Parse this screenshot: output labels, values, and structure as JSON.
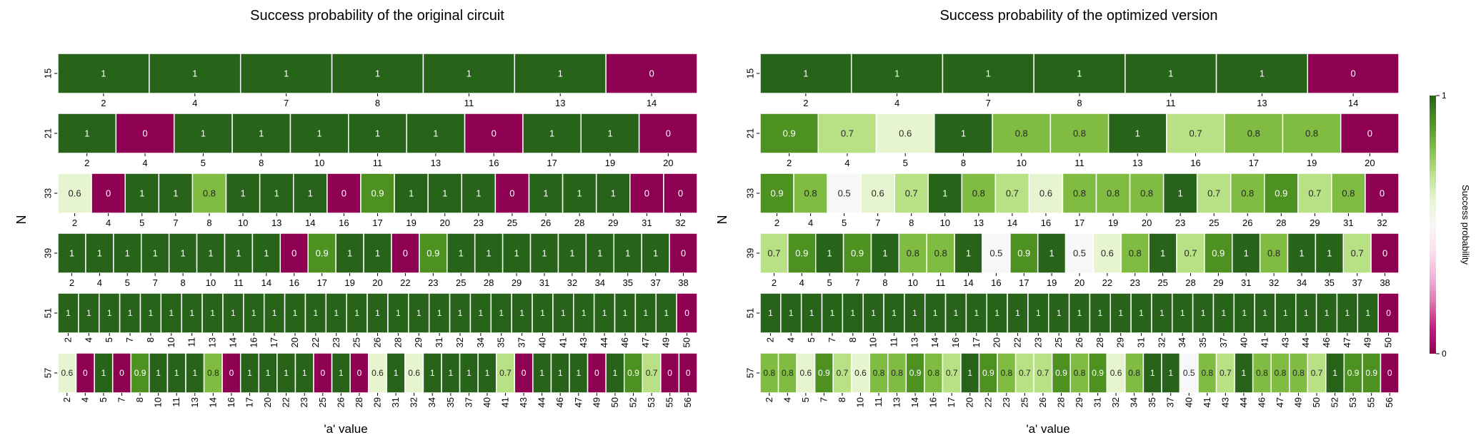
{
  "chart_data": [
    {
      "type": "heatmap",
      "title": "Success probability of the original circuit",
      "xlabel": "'a' value",
      "ylabel": "N",
      "rows": [
        {
          "N": "15",
          "a": [
            "2",
            "4",
            "7",
            "8",
            "11",
            "13",
            "14"
          ],
          "values": [
            1,
            1,
            1,
            1,
            1,
            1,
            0
          ]
        },
        {
          "N": "21",
          "a": [
            "2",
            "4",
            "5",
            "8",
            "10",
            "11",
            "13",
            "16",
            "17",
            "19",
            "20"
          ],
          "values": [
            1,
            0,
            1,
            1,
            1,
            1,
            1,
            0,
            1,
            1,
            0
          ]
        },
        {
          "N": "33",
          "a": [
            "2",
            "4",
            "5",
            "7",
            "8",
            "10",
            "13",
            "14",
            "16",
            "17",
            "19",
            "20",
            "23",
            "25",
            "26",
            "28",
            "29",
            "31",
            "32"
          ],
          "values": [
            0.6,
            0,
            1,
            1,
            0.8,
            1,
            1,
            1,
            0,
            0.9,
            1,
            1,
            1,
            0,
            1,
            1,
            1,
            0,
            0
          ]
        },
        {
          "N": "39",
          "a": [
            "2",
            "4",
            "5",
            "7",
            "8",
            "10",
            "11",
            "14",
            "16",
            "17",
            "19",
            "20",
            "22",
            "23",
            "25",
            "28",
            "29",
            "31",
            "32",
            "34",
            "35",
            "37",
            "38"
          ],
          "values": [
            1,
            1,
            1,
            1,
            1,
            1,
            1,
            1,
            0,
            0.9,
            1,
            1,
            0,
            0.9,
            1,
            1,
            1,
            1,
            1,
            1,
            1,
            1,
            0
          ]
        },
        {
          "N": "51",
          "a": [
            "2",
            "4",
            "5",
            "7",
            "8",
            "10",
            "11",
            "13",
            "14",
            "16",
            "17",
            "20",
            "22",
            "23",
            "25",
            "26",
            "28",
            "29",
            "31",
            "32",
            "34",
            "35",
            "37",
            "40",
            "41",
            "43",
            "44",
            "46",
            "47",
            "49",
            "50"
          ],
          "values": [
            1,
            1,
            1,
            1,
            1,
            1,
            1,
            1,
            1,
            1,
            1,
            1,
            1,
            1,
            1,
            1,
            1,
            1,
            1,
            1,
            1,
            1,
            1,
            1,
            1,
            1,
            1,
            1,
            1,
            1,
            0
          ]
        },
        {
          "N": "57",
          "a": [
            "2",
            "4",
            "5",
            "7",
            "8",
            "10",
            "11",
            "13",
            "14",
            "16",
            "17",
            "20",
            "22",
            "23",
            "25",
            "26",
            "28",
            "29",
            "31",
            "32",
            "34",
            "35",
            "37",
            "40",
            "41",
            "43",
            "44",
            "46",
            "47",
            "49",
            "50",
            "52",
            "53",
            "55",
            "56"
          ],
          "values": [
            0.6,
            0,
            1,
            0,
            0.9,
            1,
            1,
            1,
            0.8,
            0,
            1,
            1,
            1,
            1,
            0,
            1,
            0,
            0.6,
            1,
            0.6,
            1,
            1,
            1,
            1,
            0.7,
            0,
            1,
            1,
            1,
            0,
            1,
            0.9,
            0.7,
            0,
            0
          ]
        }
      ]
    },
    {
      "type": "heatmap",
      "title": "Success probability of the optimized version",
      "xlabel": "'a' value",
      "ylabel": "N",
      "rows": [
        {
          "N": "15",
          "a": [
            "2",
            "4",
            "7",
            "8",
            "11",
            "13",
            "14"
          ],
          "values": [
            1,
            1,
            1,
            1,
            1,
            1,
            0
          ]
        },
        {
          "N": "21",
          "a": [
            "2",
            "4",
            "5",
            "8",
            "10",
            "11",
            "13",
            "16",
            "17",
            "19",
            "20"
          ],
          "values": [
            0.9,
            0.7,
            0.6,
            1,
            0.8,
            0.8,
            1,
            0.7,
            0.8,
            0.8,
            0
          ]
        },
        {
          "N": "33",
          "a": [
            "2",
            "4",
            "5",
            "7",
            "8",
            "10",
            "13",
            "14",
            "16",
            "17",
            "19",
            "20",
            "23",
            "25",
            "26",
            "28",
            "29",
            "31",
            "32"
          ],
          "values": [
            0.9,
            0.8,
            0.5,
            0.6,
            0.7,
            1,
            0.8,
            0.7,
            0.6,
            0.8,
            0.8,
            0.8,
            1,
            0.7,
            0.8,
            0.9,
            0.7,
            0.8,
            0
          ]
        },
        {
          "N": "39",
          "a": [
            "2",
            "4",
            "5",
            "7",
            "8",
            "10",
            "11",
            "14",
            "16",
            "17",
            "19",
            "20",
            "22",
            "23",
            "25",
            "28",
            "29",
            "31",
            "32",
            "34",
            "35",
            "37",
            "38"
          ],
          "values": [
            0.7,
            0.9,
            1,
            0.9,
            1,
            0.8,
            0.8,
            1,
            0.5,
            0.9,
            1,
            0.5,
            0.6,
            0.8,
            1,
            0.7,
            0.9,
            1,
            0.8,
            1,
            1,
            0.7,
            0
          ]
        },
        {
          "N": "51",
          "a": [
            "2",
            "4",
            "5",
            "7",
            "8",
            "10",
            "11",
            "13",
            "14",
            "16",
            "17",
            "20",
            "22",
            "23",
            "25",
            "26",
            "28",
            "29",
            "31",
            "32",
            "34",
            "35",
            "37",
            "40",
            "41",
            "43",
            "44",
            "46",
            "47",
            "49",
            "50"
          ],
          "values": [
            1,
            1,
            1,
            1,
            1,
            1,
            1,
            1,
            1,
            1,
            1,
            1,
            1,
            1,
            1,
            1,
            1,
            1,
            1,
            1,
            1,
            1,
            1,
            1,
            1,
            1,
            1,
            1,
            1,
            1,
            0
          ]
        },
        {
          "N": "57",
          "a": [
            "2",
            "4",
            "5",
            "7",
            "8",
            "10",
            "11",
            "13",
            "14",
            "16",
            "17",
            "20",
            "22",
            "23",
            "25",
            "26",
            "28",
            "29",
            "31",
            "32",
            "34",
            "35",
            "37",
            "40",
            "41",
            "43",
            "44",
            "46",
            "47",
            "49",
            "50",
            "52",
            "53",
            "55",
            "56"
          ],
          "values": [
            0.8,
            0.8,
            0.6,
            0.9,
            0.7,
            0.6,
            0.8,
            0.8,
            0.9,
            0.8,
            0.7,
            1,
            0.9,
            0.8,
            0.7,
            0.7,
            0.9,
            0.8,
            0.9,
            0.6,
            0.8,
            1,
            1,
            0.5,
            0.8,
            0.7,
            1,
            0.8,
            0.8,
            0.8,
            0.7,
            1,
            0.9,
            0.9,
            0
          ]
        }
      ]
    }
  ],
  "colorbar": {
    "label": "Success probability",
    "min": 0,
    "max": 1,
    "tick_min": "0",
    "tick_max": "1",
    "colors": [
      "#8e0152",
      "#c51b7d",
      "#de77ae",
      "#f1b6da",
      "#fde0ef",
      "#f7f7f7",
      "#e6f5d0",
      "#b8e186",
      "#7fbc41",
      "#4d9221",
      "#276419"
    ]
  }
}
